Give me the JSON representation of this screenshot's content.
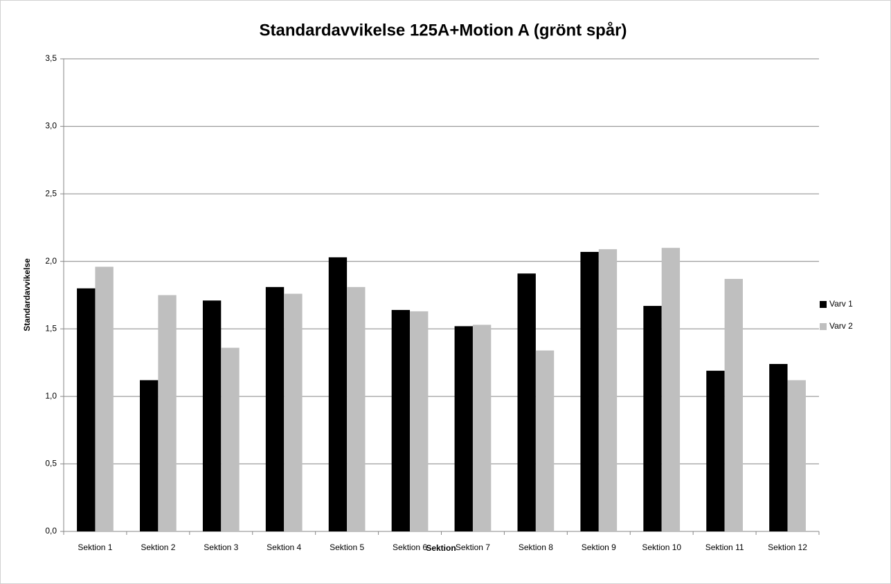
{
  "chart_data": {
    "type": "bar",
    "title": "Standardavvikelse 125A+Motion A (grönt spår)",
    "x_label": "Sektion",
    "y_label": "Standardavvikelse",
    "categories": [
      "Sektion 1",
      "Sektion 2",
      "Sektion 3",
      "Sektion 4",
      "Sektion 5",
      "Sektion 6",
      "Sektion 7",
      "Sektion 8",
      "Sektion 9",
      "Sektion 10",
      "Sektion 11",
      "Sektion 12"
    ],
    "series": [
      {
        "name": "Varv 1",
        "color": "#000000",
        "values": [
          1.8,
          1.12,
          1.71,
          1.81,
          2.03,
          1.64,
          1.52,
          1.91,
          2.07,
          1.67,
          1.19,
          1.24
        ]
      },
      {
        "name": "Varv 2",
        "color": "#bfbfbf",
        "values": [
          1.96,
          1.75,
          1.36,
          1.76,
          1.81,
          1.63,
          1.53,
          1.34,
          2.09,
          2.1,
          1.87,
          1.12
        ]
      }
    ],
    "ylim": [
      0,
      3.5
    ],
    "yticks": [
      {
        "value": 0,
        "label": "0,0"
      },
      {
        "value": 0.5,
        "label": "0,5"
      },
      {
        "value": 1,
        "label": "1,0"
      },
      {
        "value": 1.5,
        "label": "1,5"
      },
      {
        "value": 2,
        "label": "2,0"
      },
      {
        "value": 2.5,
        "label": "2,5"
      },
      {
        "value": 3,
        "label": "3,0"
      },
      {
        "value": 3.5,
        "label": "3,5"
      }
    ],
    "grid": true,
    "legend": "right"
  }
}
